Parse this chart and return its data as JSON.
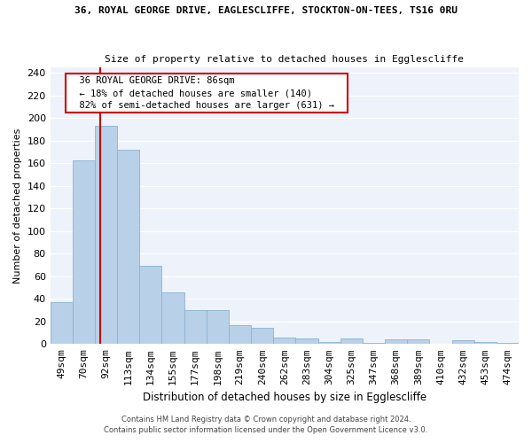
{
  "title1": "36, ROYAL GEORGE DRIVE, EAGLESCLIFFE, STOCKTON-ON-TEES, TS16 0RU",
  "title2": "Size of property relative to detached houses in Egglescliffe",
  "xlabel": "Distribution of detached houses by size in Egglescliffe",
  "ylabel": "Number of detached properties",
  "categories": [
    "49sqm",
    "70sqm",
    "92sqm",
    "113sqm",
    "134sqm",
    "155sqm",
    "177sqm",
    "198sqm",
    "219sqm",
    "240sqm",
    "262sqm",
    "283sqm",
    "304sqm",
    "325sqm",
    "347sqm",
    "368sqm",
    "389sqm",
    "410sqm",
    "432sqm",
    "453sqm",
    "474sqm"
  ],
  "values": [
    37,
    163,
    193,
    172,
    69,
    46,
    30,
    30,
    17,
    14,
    6,
    5,
    2,
    5,
    1,
    4,
    4,
    0,
    3,
    2,
    1
  ],
  "bar_color": "#b8d0e8",
  "bar_edge_color": "#8ab4d4",
  "annotation_text": "  36 ROYAL GEORGE DRIVE: 86sqm  \n  ← 18% of detached houses are smaller (140)  \n  82% of semi-detached houses are larger (631) →  ",
  "annotation_box_color": "#ffffff",
  "annotation_box_edge": "#cc0000",
  "line_color": "#cc0000",
  "footer1": "Contains HM Land Registry data © Crown copyright and database right 2024.",
  "footer2": "Contains public sector information licensed under the Open Government Licence v3.0.",
  "background_color": "#eef2fa",
  "ylim": [
    0,
    245
  ],
  "yticks": [
    0,
    20,
    40,
    60,
    80,
    100,
    120,
    140,
    160,
    180,
    200,
    220,
    240
  ],
  "prop_sqm": 86
}
